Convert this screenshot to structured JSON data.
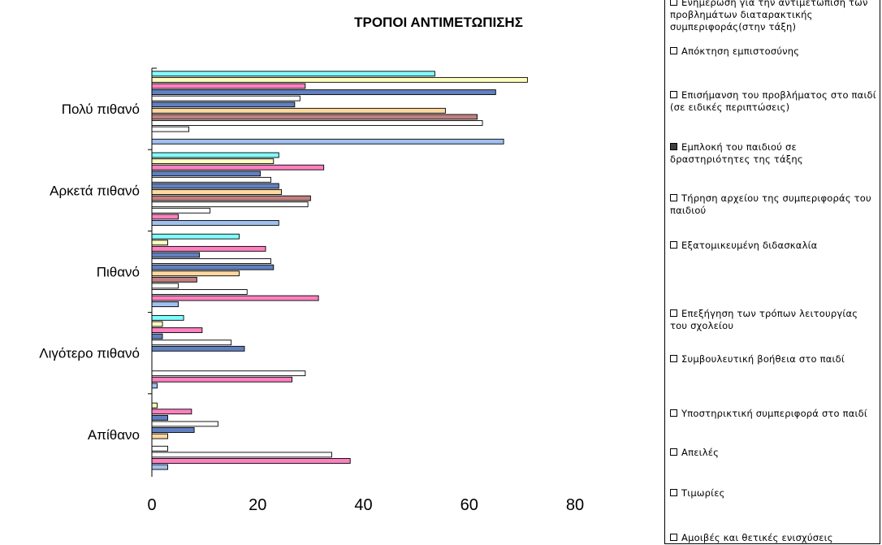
{
  "chart_data": {
    "type": "bar",
    "orientation": "horizontal",
    "title": "ΤΡΟΠΟΙ ΑΝΤΙΜΕΤΩΠΙΣΗΣ",
    "xlabel": "",
    "ylabel": "",
    "xlim": [
      0,
      80
    ],
    "x_ticks": [
      "0",
      "20",
      "40",
      "60",
      "80"
    ],
    "categories": [
      "Πολύ πιθανό",
      "Αρκετά πιθανό",
      "Πιθανό",
      "Λιγότερο πιθανό",
      "Απίθανο"
    ],
    "series": [
      {
        "name": "Ενημέρωση για την αντιμετώπιση των προβλημάτων διαταρακτικής συμπεριφοράς(στην τάξη)",
        "color": "#80ffff",
        "values": [
          53.5,
          24,
          16.5,
          6,
          0
        ]
      },
      {
        "name": "Απόκτηση εμπιστοσύνης",
        "color": "#ffffc0",
        "values": [
          71,
          23,
          3,
          2,
          1
        ]
      },
      {
        "name": "Επισήμανση του προβλήματος στο παιδί (σε ειδικές περιπτώσεις)",
        "color": "#ff80c0",
        "values": [
          29,
          32.5,
          21.5,
          9.5,
          7.5
        ]
      },
      {
        "name": "Εμπλοκή του παιδιού σε δραστηριότητες της τάξης",
        "color": "#6080c0",
        "values": [
          65,
          20.5,
          9,
          2,
          3
        ]
      },
      {
        "name": "Τήρηση αρχείου της συμπεριφοράς του παιδιού",
        "color": "#ffffff",
        "values": [
          28,
          22.5,
          22.5,
          15,
          12.5
        ]
      },
      {
        "name": "Εξατομικευμένη διδασκαλία",
        "color": "#6080c0",
        "values": [
          27,
          24,
          23,
          17.5,
          8
        ]
      },
      {
        "name": "Επεξήγηση των τρόπων λειτουργίας του σχολείου",
        "color": "#ffd8a0",
        "values": [
          55.5,
          24.5,
          16.5,
          0,
          3
        ]
      },
      {
        "name": "Συμβουλευτική βοήθεια στο παιδί",
        "color": "#c08080",
        "values": [
          61.5,
          30,
          8.5,
          0,
          0
        ]
      },
      {
        "name": "Υποστηρικτική συμπεριφορά στο παιδί",
        "color": "#ffffff",
        "values": [
          62.5,
          29.5,
          5,
          0,
          3
        ]
      },
      {
        "name": "Απειλές",
        "color": "#ffffff",
        "values": [
          7,
          11,
          18,
          29,
          34
        ]
      },
      {
        "name": "Τιμωρίες",
        "color": "#ff80c0",
        "values": [
          0,
          5,
          31.5,
          26.5,
          37.5
        ]
      },
      {
        "name": "Αμοιβές και θετικές ενισχύσεις",
        "color": "#a0c0f0",
        "values": [
          66.5,
          24,
          5,
          1,
          3
        ]
      }
    ],
    "grid": false,
    "legend_position": "right"
  },
  "legend": {
    "items": [
      {
        "label": "Ενημέρωση για την αντιμετώπιση των προβλημάτων διαταρακτικής συμπεριφοράς(στην τάξη)"
      },
      {
        "label": "Απόκτηση εμπιστοσύνης"
      },
      {
        "label": "Επισήμανση του προβλήματος στο παιδί (σε ειδικές περιπτώσεις)"
      },
      {
        "label": "Εμπλοκή του παιδιού σε δραστηριότητες της τάξης"
      },
      {
        "label": "Τήρηση αρχείου της συμπεριφοράς του παιδιού"
      },
      {
        "label": "Εξατομικευμένη διδασκαλία"
      },
      {
        "label": "Επεξήγηση των τρόπων λειτουργίας του σχολείου"
      },
      {
        "label": "Συμβουλευτική βοήθεια στο παιδί"
      },
      {
        "label": "Υποστηρικτική συμπεριφορά στο παιδί"
      },
      {
        "label": "Απειλές"
      },
      {
        "label": "Τιμωρίες"
      },
      {
        "label": "Αμοιβές και θετικές ενισχύσεις"
      }
    ]
  }
}
